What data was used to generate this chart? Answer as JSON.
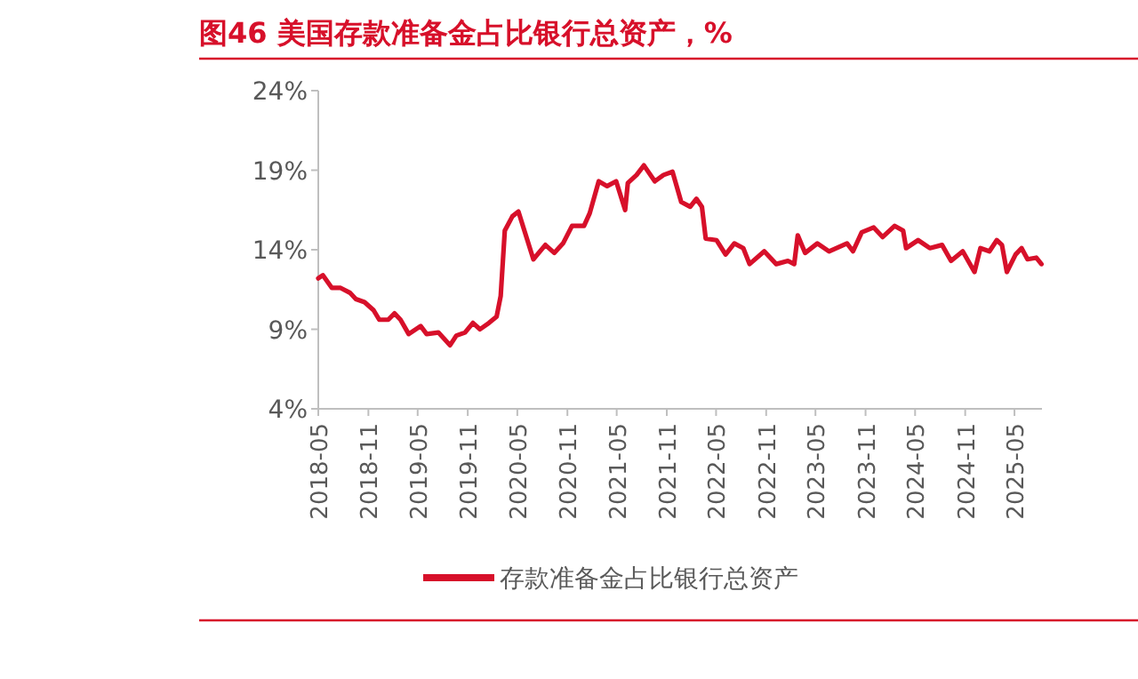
{
  "chart_data": {
    "type": "line",
    "title": "图46  美国存款准备金占比银行总资产，%",
    "x": [
      "2018-05-01",
      "2018-05-18",
      "2018-06-20",
      "2018-07-22",
      "2018-08-25",
      "2018-09-16",
      "2018-10-18",
      "2018-11-20",
      "2018-12-11",
      "2019-01-13",
      "2019-02-05",
      "2019-02-27",
      "2019-03-29",
      "2019-05-12",
      "2019-06-03",
      "2019-07-16",
      "2019-08-28",
      "2019-09-20",
      "2019-10-22",
      "2019-11-20",
      "2019-12-16",
      "2020-01-18",
      "2020-02-15",
      "2020-03-01",
      "2020-03-16",
      "2020-04-13",
      "2020-05-05",
      "2020-05-27",
      "2020-06-29",
      "2020-08-12",
      "2020-09-14",
      "2020-10-16",
      "2020-11-18",
      "2021-01-01",
      "2021-01-22",
      "2021-02-24",
      "2021-03-27",
      "2021-04-29",
      "2021-06-01",
      "2021-06-11",
      "2021-07-13",
      "2021-08-09",
      "2021-09-18",
      "2021-10-20",
      "2021-11-22",
      "2021-12-24",
      "2022-01-26",
      "2022-02-18",
      "2022-03-10",
      "2022-03-24",
      "2022-05-03",
      "2022-06-05",
      "2022-07-07",
      "2022-08-09",
      "2022-09-01",
      "2022-10-25",
      "2022-12-08",
      "2023-01-20",
      "2023-02-12",
      "2023-02-25",
      "2023-03-24",
      "2023-05-08",
      "2023-06-20",
      "2023-08-25",
      "2023-09-16",
      "2023-10-18",
      "2023-12-01",
      "2024-01-03",
      "2024-02-16",
      "2024-03-18",
      "2024-03-29",
      "2024-05-12",
      "2024-06-24",
      "2024-08-08",
      "2024-09-10",
      "2024-10-23",
      "2024-12-05",
      "2024-12-27",
      "2025-01-29",
      "2025-02-25",
      "2025-03-16",
      "2025-04-03",
      "2025-05-05",
      "2025-05-27",
      "2025-06-18",
      "2025-07-20",
      "2025-08-08"
    ],
    "series": [
      {
        "name": "存款准备金占比银行总资产",
        "color": "#d7102a",
        "values": [
          12.2,
          12.4,
          11.6,
          11.6,
          11.3,
          10.9,
          10.7,
          10.2,
          9.6,
          9.6,
          10.0,
          9.6,
          8.7,
          9.2,
          8.7,
          8.8,
          8.0,
          8.6,
          8.8,
          9.4,
          9.0,
          9.4,
          9.8,
          11.1,
          15.2,
          16.1,
          16.4,
          15.2,
          13.4,
          14.3,
          13.8,
          14.4,
          15.5,
          15.5,
          16.3,
          18.3,
          18.0,
          18.3,
          16.5,
          18.2,
          18.7,
          19.3,
          18.3,
          18.7,
          18.9,
          17.0,
          16.7,
          17.2,
          16.7,
          14.7,
          14.6,
          13.7,
          14.4,
          14.1,
          13.1,
          13.9,
          13.1,
          13.3,
          13.1,
          14.9,
          13.8,
          14.4,
          13.9,
          14.4,
          13.9,
          15.1,
          15.4,
          14.8,
          15.5,
          15.2,
          14.1,
          14.6,
          14.1,
          14.3,
          13.3,
          13.9,
          12.6,
          14.1,
          13.9,
          14.6,
          14.3,
          12.6,
          13.7,
          14.1,
          13.4,
          13.5,
          13.1
        ]
      }
    ],
    "xlim": [
      "2018-05-01",
      "2025-08-10"
    ],
    "xticks": [
      "2018-05",
      "2018-11",
      "2019-05",
      "2019-11",
      "2020-05",
      "2020-11",
      "2021-05",
      "2021-11",
      "2022-05",
      "2022-11",
      "2023-05",
      "2023-11",
      "2024-05",
      "2024-11",
      "2025-05"
    ],
    "ylim": [
      4,
      24
    ],
    "yticks": [
      {
        "value": 4,
        "label": "4%"
      },
      {
        "value": 9,
        "label": "9%"
      },
      {
        "value": 14,
        "label": "14%"
      },
      {
        "value": 19,
        "label": "19%"
      },
      {
        "value": 24,
        "label": "24%"
      }
    ],
    "grid": false,
    "legend": "bottom",
    "line_style": "solid",
    "marker": "none"
  }
}
